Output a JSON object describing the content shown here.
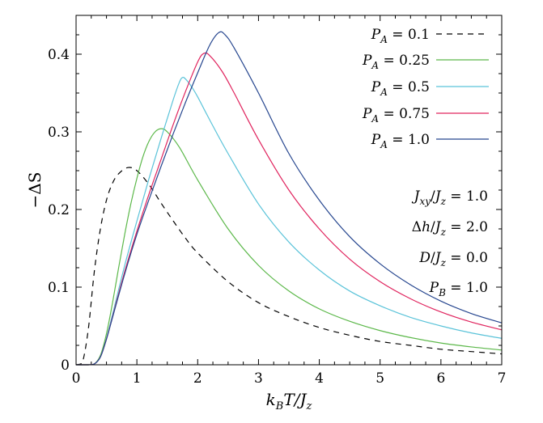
{
  "chart_data": {
    "type": "line",
    "xlabel": {
      "base": "k",
      "sub1": "B",
      "mid": "T/J",
      "sub2": "z"
    },
    "ylabel": "−ΔS",
    "xlim": [
      0,
      7
    ],
    "ylim": [
      0,
      0.45
    ],
    "xticks": [
      0,
      1,
      2,
      3,
      4,
      5,
      6,
      7
    ],
    "yticks": [
      0,
      0.1,
      0.2,
      0.3,
      0.4
    ],
    "xtick_labels": [
      "0",
      "1",
      "2",
      "3",
      "4",
      "5",
      "6",
      "7"
    ],
    "ytick_labels": [
      "0",
      "0.1",
      "0.2",
      "0.3",
      "0.4"
    ],
    "grid": false,
    "legend_position": "top-right",
    "series": [
      {
        "name": "P_A = 0.1",
        "legend_value": "0.1",
        "color": "#000000",
        "dash": "7,6",
        "x": [
          0.0,
          0.1,
          0.2,
          0.3,
          0.4,
          0.5,
          0.6,
          0.7,
          0.85,
          1.0,
          1.2,
          1.4,
          1.6,
          1.8,
          2.0,
          2.5,
          3.0,
          3.5,
          4.0,
          4.5,
          5.0,
          5.5,
          6.0,
          6.5,
          7.0
        ],
        "y": [
          0.0,
          0.002,
          0.045,
          0.12,
          0.175,
          0.212,
          0.234,
          0.246,
          0.254,
          0.25,
          0.232,
          0.208,
          0.185,
          0.163,
          0.144,
          0.107,
          0.08,
          0.062,
          0.048,
          0.038,
          0.03,
          0.025,
          0.02,
          0.017,
          0.014
        ]
      },
      {
        "name": "P_A = 0.25",
        "legend_value": "0.25",
        "color": "#5cb84a",
        "dash": "",
        "x": [
          0.0,
          0.2,
          0.3,
          0.4,
          0.5,
          0.6,
          0.7,
          0.8,
          0.9,
          1.0,
          1.1,
          1.2,
          1.3,
          1.4,
          1.5,
          1.7,
          2.0,
          2.5,
          3.0,
          3.5,
          4.0,
          4.5,
          5.0,
          5.5,
          6.0,
          6.5,
          7.0
        ],
        "y": [
          0.0,
          0.0,
          0.001,
          0.012,
          0.04,
          0.08,
          0.125,
          0.168,
          0.207,
          0.24,
          0.268,
          0.288,
          0.3,
          0.304,
          0.3,
          0.28,
          0.238,
          0.175,
          0.128,
          0.095,
          0.072,
          0.056,
          0.044,
          0.035,
          0.028,
          0.023,
          0.019
        ]
      },
      {
        "name": "P_A = 0.5",
        "legend_value": "0.5",
        "color": "#5bc3d9",
        "dash": "",
        "x": [
          0.0,
          0.2,
          0.3,
          0.4,
          0.5,
          0.6,
          0.8,
          1.0,
          1.2,
          1.4,
          1.6,
          1.7,
          1.75,
          1.8,
          1.9,
          2.0,
          2.2,
          2.5,
          3.0,
          3.5,
          4.0,
          4.5,
          5.0,
          5.5,
          6.0,
          6.5,
          7.0
        ],
        "y": [
          0.0,
          0.0,
          0.001,
          0.01,
          0.034,
          0.065,
          0.128,
          0.185,
          0.24,
          0.292,
          0.342,
          0.364,
          0.37,
          0.368,
          0.358,
          0.345,
          0.315,
          0.272,
          0.207,
          0.158,
          0.122,
          0.095,
          0.076,
          0.061,
          0.05,
          0.041,
          0.034
        ]
      },
      {
        "name": "P_A = 0.75",
        "legend_value": "0.75",
        "color": "#e0245e",
        "dash": "",
        "x": [
          0.0,
          0.2,
          0.3,
          0.4,
          0.5,
          0.6,
          0.8,
          1.0,
          1.2,
          1.4,
          1.6,
          1.8,
          2.0,
          2.1,
          2.2,
          2.4,
          2.6,
          3.0,
          3.5,
          4.0,
          4.5,
          5.0,
          5.5,
          6.0,
          6.5,
          7.0
        ],
        "y": [
          0.0,
          0.0,
          0.001,
          0.01,
          0.033,
          0.062,
          0.12,
          0.172,
          0.22,
          0.265,
          0.31,
          0.352,
          0.39,
          0.401,
          0.398,
          0.378,
          0.35,
          0.29,
          0.225,
          0.175,
          0.136,
          0.107,
          0.085,
          0.068,
          0.055,
          0.045
        ]
      },
      {
        "name": "P_A = 1.0",
        "legend_value": "1.0",
        "color": "#26468f",
        "dash": "",
        "x": [
          0.0,
          0.2,
          0.3,
          0.4,
          0.5,
          0.6,
          0.8,
          1.0,
          1.2,
          1.4,
          1.6,
          1.8,
          2.0,
          2.2,
          2.35,
          2.45,
          2.6,
          3.0,
          3.5,
          4.0,
          4.5,
          5.0,
          5.5,
          6.0,
          6.5,
          7.0
        ],
        "y": [
          0.0,
          0.0,
          0.001,
          0.01,
          0.033,
          0.061,
          0.117,
          0.168,
          0.213,
          0.256,
          0.298,
          0.338,
          0.376,
          0.412,
          0.428,
          0.425,
          0.408,
          0.35,
          0.272,
          0.212,
          0.165,
          0.13,
          0.103,
          0.082,
          0.066,
          0.054
        ]
      }
    ],
    "annotations": [
      {
        "id": "jxy",
        "parts": [
          {
            "t": "J",
            "i": true
          },
          {
            "t": "xy",
            "i": true,
            "sub": true
          },
          {
            "t": "/"
          },
          {
            "t": "J",
            "i": true
          },
          {
            "t": "z",
            "i": true,
            "sub": true
          },
          {
            "t": " = 1.0"
          }
        ]
      },
      {
        "id": "dh",
        "parts": [
          {
            "t": "Δ"
          },
          {
            "t": "h",
            "i": true
          },
          {
            "t": "/"
          },
          {
            "t": "J",
            "i": true
          },
          {
            "t": "z",
            "i": true,
            "sub": true
          },
          {
            "t": " = 2.0"
          }
        ]
      },
      {
        "id": "d",
        "parts": [
          {
            "t": "D",
            "i": true
          },
          {
            "t": "/"
          },
          {
            "t": "J",
            "i": true
          },
          {
            "t": "z",
            "i": true,
            "sub": true
          },
          {
            "t": " = 0.0"
          }
        ]
      },
      {
        "id": "pb",
        "parts": [
          {
            "t": "P",
            "i": true
          },
          {
            "t": "B",
            "i": true,
            "sub": true
          },
          {
            "t": " = 1.0"
          }
        ]
      }
    ]
  }
}
